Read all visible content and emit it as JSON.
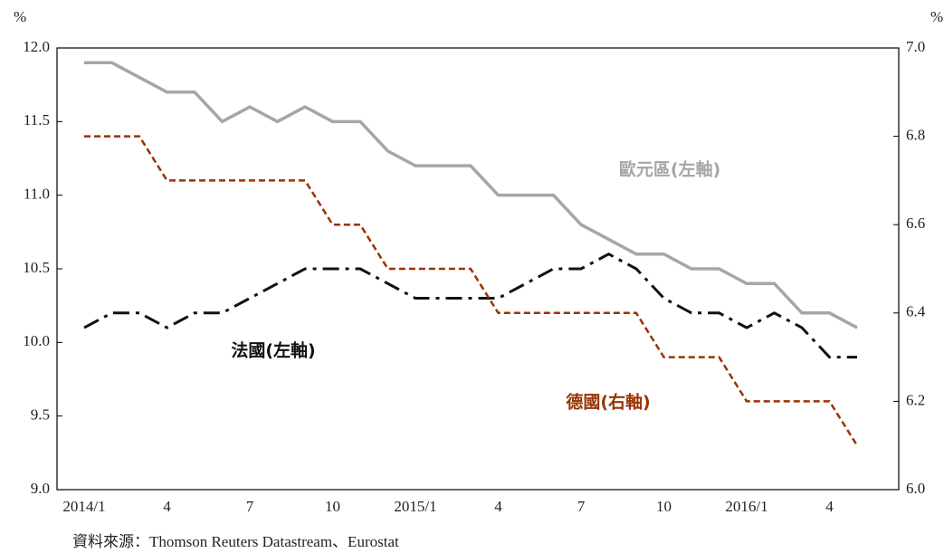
{
  "chart_data": {
    "type": "line",
    "y_unit": "%",
    "y2_unit": "%",
    "source": "資料來源：Thomson Reuters Datastream、Eurostat",
    "categories": [
      "2014/1",
      null,
      null,
      "4",
      null,
      null,
      "7",
      null,
      null,
      "10",
      null,
      null,
      "2015/1",
      null,
      null,
      "4",
      null,
      null,
      "7",
      null,
      null,
      "10",
      null,
      null,
      "2016/1",
      null,
      null,
      "4",
      null
    ],
    "ylim": [
      9.0,
      12.0
    ],
    "yticks": [
      {
        "value": 9.0,
        "label": "9.0"
      },
      {
        "value": 9.5,
        "label": "9.5"
      },
      {
        "value": 10.0,
        "label": "10.0"
      },
      {
        "value": 10.5,
        "label": "10.5"
      },
      {
        "value": 11.0,
        "label": "11.0"
      },
      {
        "value": 11.5,
        "label": "11.5"
      },
      {
        "value": 12.0,
        "label": "12.0"
      }
    ],
    "y2lim": [
      6.0,
      7.0
    ],
    "y2ticks": [
      {
        "value": 6.0,
        "label": "6.0"
      },
      {
        "value": 6.2,
        "label": "6.2"
      },
      {
        "value": 6.4,
        "label": "6.4"
      },
      {
        "value": 6.6,
        "label": "6.6"
      },
      {
        "value": 6.8,
        "label": "6.8"
      },
      {
        "value": 7.0,
        "label": "7.0"
      }
    ],
    "series": [
      {
        "name": "歐元區(左軸)",
        "color": "#a6a6a6",
        "axis": "y",
        "values": [
          11.9,
          11.9,
          11.8,
          11.7,
          11.7,
          11.5,
          11.6,
          11.5,
          11.6,
          11.5,
          11.5,
          11.3,
          11.2,
          11.2,
          11.2,
          11.0,
          11.0,
          11.0,
          10.8,
          10.7,
          10.6,
          10.6,
          10.5,
          10.5,
          10.4,
          10.4,
          10.2,
          10.2,
          10.1
        ]
      },
      {
        "name": "法國(左軸)",
        "color": "#111111",
        "axis": "y",
        "values": [
          10.1,
          10.2,
          10.2,
          10.1,
          10.2,
          10.2,
          10.3,
          10.4,
          10.5,
          10.5,
          10.5,
          10.4,
          10.3,
          10.3,
          10.3,
          10.3,
          10.4,
          10.5,
          10.5,
          10.6,
          10.5,
          10.3,
          10.2,
          10.2,
          10.1,
          10.2,
          10.1,
          9.9,
          9.9
        ]
      },
      {
        "name": "德國(右軸)",
        "color": "#993300",
        "axis": "y2",
        "values": [
          6.8,
          6.8,
          6.8,
          6.7,
          6.7,
          6.7,
          6.7,
          6.7,
          6.7,
          6.6,
          6.6,
          6.5,
          6.5,
          6.5,
          6.5,
          6.4,
          6.4,
          6.4,
          6.4,
          6.4,
          6.4,
          6.3,
          6.3,
          6.3,
          6.2,
          6.2,
          6.2,
          6.2,
          6.1
        ]
      }
    ]
  }
}
